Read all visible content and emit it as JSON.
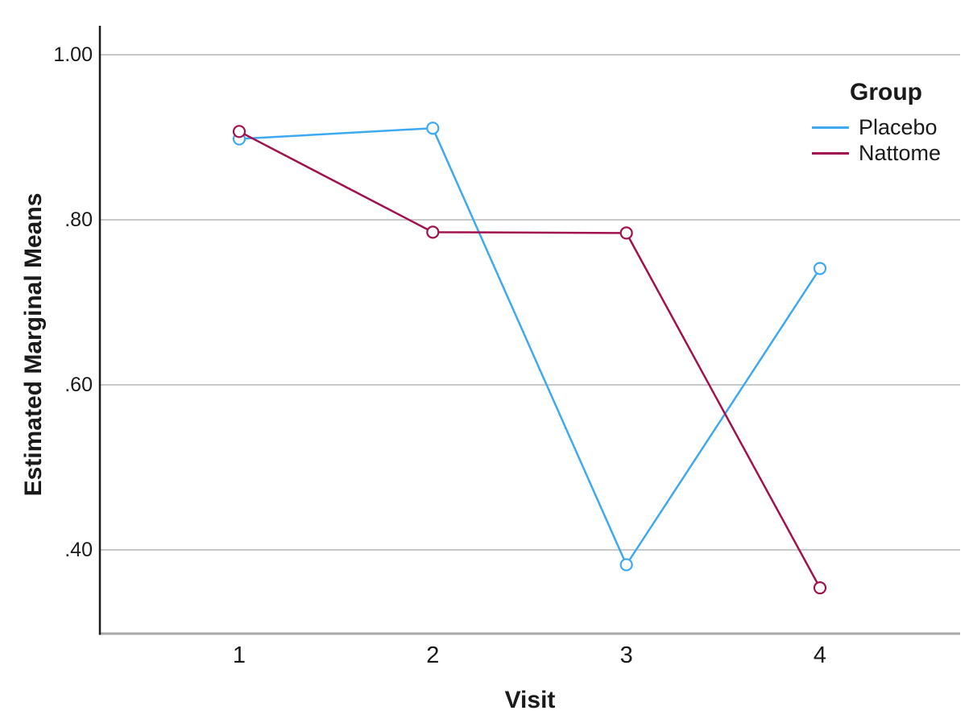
{
  "page": {
    "background": "#ffffff"
  },
  "colors": {
    "gridline": "#c9c9c9",
    "x_axis_line": "#a8a8a8",
    "y_axis_line": "#1a1a1a",
    "placebo": "#3fa9f0",
    "nattome": "#a0114e"
  },
  "chart_data": {
    "type": "line",
    "title": "",
    "xlabel": "Visit",
    "ylabel": "Estimated Marginal Means",
    "categories": [
      "1",
      "2",
      "3",
      "4"
    ],
    "y_tick_labels": [
      "1.00",
      ".80",
      ".60",
      ".40"
    ],
    "y_tick_values": [
      1.0,
      0.8,
      0.6,
      0.4
    ],
    "ylim": [
      0.3,
      1.035
    ],
    "grid": "horizontal-only",
    "marker_style": "open-circle",
    "legend": {
      "title": "Group",
      "position": "top-right",
      "entries": [
        "Placebo",
        "Nattome"
      ]
    },
    "series": [
      {
        "name": "Placebo",
        "color": "#3fa9f0",
        "values": [
          0.898,
          0.911,
          0.382,
          0.741
        ]
      },
      {
        "name": "Nattome",
        "color": "#a0114e",
        "values": [
          0.907,
          0.785,
          0.784,
          0.354
        ]
      }
    ]
  }
}
